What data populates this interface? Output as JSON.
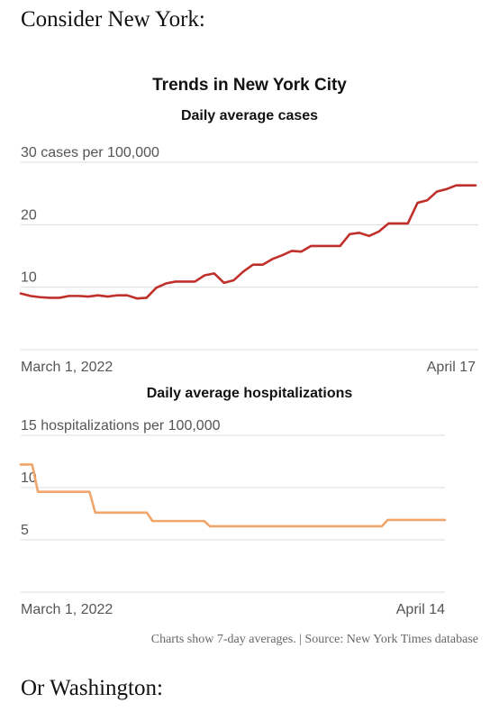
{
  "text": {
    "intro": "Consider New York:",
    "outro": "Or Washington:",
    "footnote": "Charts show 7-day averages. | Source: New York Times database"
  },
  "chart_title": "Trends in New York City",
  "colors": {
    "cases_line": "#c0302b",
    "hosp_line": "#f0a56a",
    "grid": "#dcdcdc"
  },
  "chart_data": [
    {
      "type": "line",
      "title": "Daily average cases",
      "y_unit_label": "cases per 100,000",
      "ylim": [
        0,
        30
      ],
      "y_ticks": [
        {
          "value": 30,
          "label": "30 cases per 100,000"
        },
        {
          "value": 20,
          "label": "20"
        },
        {
          "value": 10,
          "label": "10"
        }
      ],
      "x_start_label": "March 1, 2022",
      "x_end_label": "April 17",
      "grid": true,
      "series": [
        {
          "values": [
            9.0,
            8.6,
            8.4,
            8.3,
            8.3,
            8.6,
            8.6,
            8.5,
            8.7,
            8.5,
            8.7,
            8.7,
            8.2,
            8.3,
            9.9,
            10.6,
            10.9,
            10.9,
            10.9,
            11.9,
            12.2,
            10.7,
            11.1,
            12.5,
            13.6,
            13.6,
            14.5,
            15.1,
            15.8,
            15.7,
            16.6,
            16.6,
            16.6,
            16.6,
            18.5,
            18.7,
            18.2,
            18.9,
            20.2,
            20.2,
            20.2,
            23.5,
            23.9,
            25.3,
            25.7,
            26.3,
            26.3,
            26.3
          ]
        }
      ]
    },
    {
      "type": "line",
      "title": "Daily average hospitalizations",
      "y_unit_label": "hospitalizations per 100,000",
      "ylim": [
        0,
        15
      ],
      "y_ticks": [
        {
          "value": 15,
          "label": "15 hospitalizations per 100,000"
        },
        {
          "value": 10,
          "label": "10"
        },
        {
          "value": 5,
          "label": "5"
        }
      ],
      "x_start_label": "March 1, 2022",
      "x_end_label": "April 14",
      "grid": true,
      "series": [
        {
          "values": [
            12.2,
            12.2,
            12.2,
            9.6,
            9.6,
            9.6,
            9.6,
            9.6,
            9.6,
            9.6,
            9.6,
            9.6,
            9.6,
            7.6,
            7.6,
            7.6,
            7.6,
            7.6,
            7.6,
            7.6,
            7.6,
            7.6,
            7.6,
            6.8,
            6.8,
            6.8,
            6.8,
            6.8,
            6.8,
            6.8,
            6.8,
            6.8,
            6.8,
            6.3,
            6.3,
            6.3,
            6.3,
            6.3,
            6.3,
            6.3,
            6.3,
            6.3,
            6.3,
            6.3,
            6.3,
            6.3,
            6.3,
            6.3,
            6.3,
            6.3,
            6.3,
            6.3,
            6.3,
            6.3,
            6.3,
            6.3,
            6.3,
            6.3,
            6.3,
            6.3,
            6.3,
            6.3,
            6.3,
            6.3,
            6.9,
            6.9,
            6.9,
            6.9,
            6.9,
            6.9,
            6.9,
            6.9,
            6.9,
            6.9,
            6.9
          ]
        }
      ]
    }
  ]
}
